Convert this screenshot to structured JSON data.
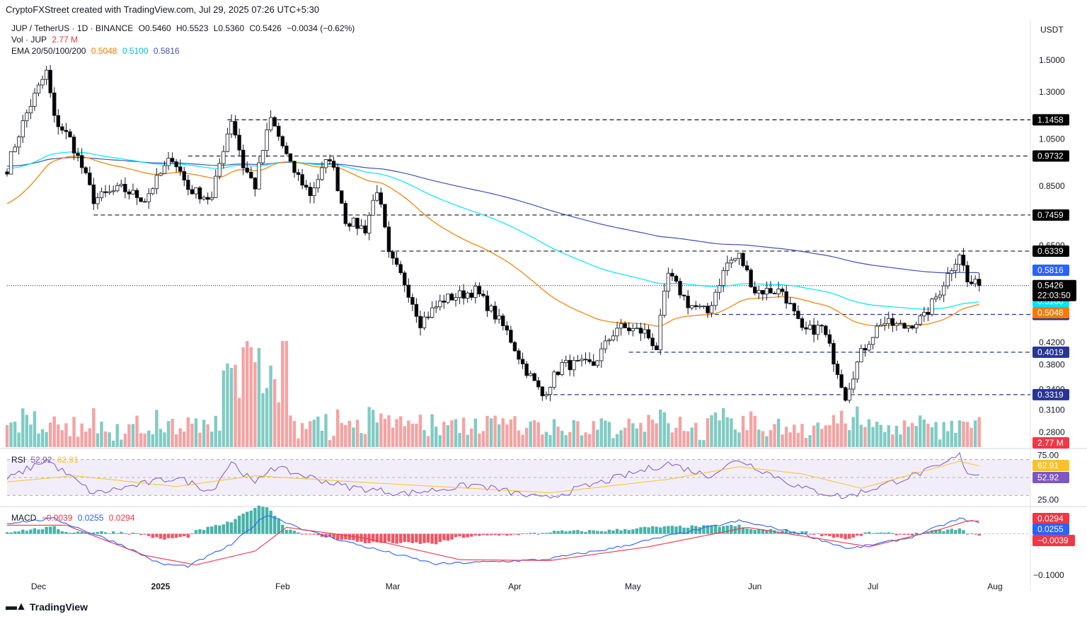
{
  "caption": "CryptoFXStreet created with TradingView.com, Jul 29, 2025 07:26 UTC+5:30",
  "currency": "USDT",
  "legend": {
    "symbol": "JUP / TetherUS · 1D · BINANCE",
    "open": "O0.5460",
    "high": "H0.5523",
    "low": "L0.5360",
    "close": "C0.5426",
    "change": "−0.0034 (−0.62%)",
    "vol_label": "Vol · JUP",
    "vol_value": "2.77 M",
    "ema_label": "EMA 20/50/100/200",
    "ema20": "0.5048",
    "ema50": "0.5100",
    "ema100": "0.5816"
  },
  "rsi_legend": {
    "label": "RSI",
    "value": "52.92",
    "ma": "62.91"
  },
  "macd_legend": {
    "label": "MACD",
    "hist": "−0.0039",
    "macd": "0.0255",
    "signal": "0.0294"
  },
  "footer": "TradingView",
  "colors": {
    "up": "#26a69a",
    "down": "#000000",
    "candle_up_fill": "#ffffff",
    "ema20": "#f57c00",
    "ema50": "#00e5ff",
    "ema200": "#3f51b5",
    "vol_up": "#80cbc4",
    "vol_down": "#f4a3a3",
    "rsi": "#7e57c2",
    "rsi_ma": "#fbc02d",
    "macd": "#2962ff",
    "signal": "#f23645"
  },
  "chart_data": [
    {
      "type": "candlestick",
      "title": "JUP / TetherUS · 1D · BINANCE",
      "yscale": "log",
      "ylim": [
        0.262,
        1.65
      ],
      "y_ticks": [
        "1.5000",
        "1.3000",
        "1.0500",
        "0.8500",
        "0.6500",
        "0.4200",
        "0.3800",
        "0.3400",
        "0.3100",
        "0.2800"
      ],
      "x_ticks": [
        "Dec",
        "2025",
        "Feb",
        "Mar",
        "Apr",
        "May",
        "Jun",
        "Jul",
        "Aug"
      ],
      "x_range": [
        "2024-11-23",
        "2025-08-10"
      ],
      "last_price": "0.5426",
      "countdown": "22:03:50",
      "levels": [
        {
          "value": 1.1458,
          "label": "1.1458",
          "start": "2025-01-18",
          "color": "black"
        },
        {
          "value": 0.9732,
          "label": "0.9732",
          "start": "2025-01-08",
          "color": "black"
        },
        {
          "value": 0.7459,
          "label": "0.7459",
          "start": "2024-12-15",
          "color": "black"
        },
        {
          "value": 0.6339,
          "label": "0.6339",
          "start": "2025-02-26",
          "color": "black"
        },
        {
          "value": 0.4764,
          "label": "0.4764",
          "start": "2025-05-20",
          "color": "navy"
        },
        {
          "value": 0.4019,
          "label": "0.4019",
          "start": "2025-04-30",
          "color": "navy"
        },
        {
          "value": 0.3319,
          "label": "0.3319",
          "start": "2025-04-09",
          "color": "navy"
        }
      ],
      "ema_tags": [
        {
          "name": "EMA 200",
          "value": "0.5816"
        },
        {
          "name": "EMA 50",
          "value": "0.5100"
        },
        {
          "name": "EMA 20",
          "value": "0.5048"
        }
      ],
      "close_anchors": [
        [
          "2024-11-23",
          0.92
        ],
        [
          "2024-11-28",
          1.18
        ],
        [
          "2024-12-03",
          1.42
        ],
        [
          "2024-12-05",
          1.15
        ],
        [
          "2024-12-09",
          1.05
        ],
        [
          "2024-12-15",
          0.8
        ],
        [
          "2024-12-22",
          0.84
        ],
        [
          "2024-12-28",
          0.8
        ],
        [
          "2025-01-04",
          0.97
        ],
        [
          "2025-01-08",
          0.84
        ],
        [
          "2025-01-14",
          0.8
        ],
        [
          "2025-01-19",
          1.15
        ],
        [
          "2025-01-22",
          0.93
        ],
        [
          "2025-01-25",
          0.85
        ],
        [
          "2025-01-29",
          1.15
        ],
        [
          "2025-02-03",
          0.93
        ],
        [
          "2025-02-08",
          0.82
        ],
        [
          "2025-02-13",
          0.97
        ],
        [
          "2025-02-17",
          0.73
        ],
        [
          "2025-02-22",
          0.7
        ],
        [
          "2025-02-25",
          0.84
        ],
        [
          "2025-02-28",
          0.62
        ],
        [
          "2025-03-04",
          0.55
        ],
        [
          "2025-03-08",
          0.46
        ],
        [
          "2025-03-14",
          0.51
        ],
        [
          "2025-03-22",
          0.53
        ],
        [
          "2025-03-30",
          0.44
        ],
        [
          "2025-04-03",
          0.38
        ],
        [
          "2025-04-08",
          0.33
        ],
        [
          "2025-04-13",
          0.38
        ],
        [
          "2025-04-21",
          0.38
        ],
        [
          "2025-04-27",
          0.45
        ],
        [
          "2025-05-04",
          0.44
        ],
        [
          "2025-05-07",
          0.41
        ],
        [
          "2025-05-10",
          0.57
        ],
        [
          "2025-05-15",
          0.5
        ],
        [
          "2025-05-20",
          0.48
        ],
        [
          "2025-05-25",
          0.6
        ],
        [
          "2025-05-28",
          0.62
        ],
        [
          "2025-06-01",
          0.53
        ],
        [
          "2025-06-08",
          0.53
        ],
        [
          "2025-06-13",
          0.44
        ],
        [
          "2025-06-18",
          0.45
        ],
        [
          "2025-06-22",
          0.37
        ],
        [
          "2025-06-24",
          0.33
        ],
        [
          "2025-06-28",
          0.4
        ],
        [
          "2025-07-03",
          0.46
        ],
        [
          "2025-07-09",
          0.45
        ],
        [
          "2025-07-14",
          0.47
        ],
        [
          "2025-07-18",
          0.53
        ],
        [
          "2025-07-23",
          0.63
        ],
        [
          "2025-07-25",
          0.55
        ],
        [
          "2025-07-28",
          0.5426
        ]
      ]
    },
    {
      "type": "bar",
      "title": "Vol · JUP",
      "last": "2.77 M"
    },
    {
      "type": "line",
      "title": "RSI",
      "ylim": [
        20,
        80
      ],
      "y_ticks": [
        "75.00",
        "25.00"
      ],
      "bands": [
        70,
        50,
        30
      ],
      "series": [
        {
          "name": "RSI",
          "last": "52.92",
          "anchors": [
            [
              "2024-11-23",
              48
            ],
            [
              "2024-12-03",
              70
            ],
            [
              "2024-12-15",
              32
            ],
            [
              "2025-01-05",
              50
            ],
            [
              "2025-01-14",
              35
            ],
            [
              "2025-01-19",
              68
            ],
            [
              "2025-01-25",
              42
            ],
            [
              "2025-01-29",
              62
            ],
            [
              "2025-02-17",
              40
            ],
            [
              "2025-03-04",
              32
            ],
            [
              "2025-03-22",
              42
            ],
            [
              "2025-04-08",
              26
            ],
            [
              "2025-05-10",
              66
            ],
            [
              "2025-05-20",
              52
            ],
            [
              "2025-05-28",
              70
            ],
            [
              "2025-06-13",
              38
            ],
            [
              "2025-06-24",
              28
            ],
            [
              "2025-07-18",
              62
            ],
            [
              "2025-07-23",
              75
            ],
            [
              "2025-07-25",
              56
            ],
            [
              "2025-07-28",
              52.92
            ]
          ]
        },
        {
          "name": "RSI MA",
          "last": "62.91",
          "anchors": [
            [
              "2024-11-23",
              45
            ],
            [
              "2024-12-10",
              52
            ],
            [
              "2025-01-05",
              40
            ],
            [
              "2025-01-25",
              52
            ],
            [
              "2025-02-20",
              45
            ],
            [
              "2025-04-10",
              33
            ],
            [
              "2025-05-10",
              48
            ],
            [
              "2025-05-28",
              62
            ],
            [
              "2025-06-13",
              54
            ],
            [
              "2025-06-28",
              38
            ],
            [
              "2025-07-23",
              68
            ],
            [
              "2025-07-28",
              62.91
            ]
          ]
        }
      ]
    },
    {
      "type": "line",
      "title": "MACD",
      "ylim": [
        -0.104,
        0.06
      ],
      "y_ticks": [
        "−0.1000"
      ],
      "series": [
        {
          "name": "Histogram",
          "last": "−0.0039"
        },
        {
          "name": "MACD",
          "last": "0.0255",
          "anchors": [
            [
              "2024-11-23",
              0.025
            ],
            [
              "2024-12-05",
              0.035
            ],
            [
              "2024-12-22",
              -0.025
            ],
            [
              "2025-01-01",
              -0.07
            ],
            [
              "2025-01-08",
              -0.075
            ],
            [
              "2025-01-19",
              -0.025
            ],
            [
              "2025-01-28",
              0.045
            ],
            [
              "2025-02-08",
              0.005
            ],
            [
              "2025-02-22",
              -0.03
            ],
            [
              "2025-03-12",
              -0.07
            ],
            [
              "2025-04-08",
              -0.06
            ],
            [
              "2025-04-25",
              -0.035
            ],
            [
              "2025-05-10",
              -0.005
            ],
            [
              "2025-05-28",
              0.03
            ],
            [
              "2025-06-13",
              0.0
            ],
            [
              "2025-06-25",
              -0.035
            ],
            [
              "2025-07-10",
              -0.01
            ],
            [
              "2025-07-23",
              0.035
            ],
            [
              "2025-07-28",
              0.0255
            ]
          ]
        },
        {
          "name": "Signal",
          "last": "0.0294",
          "anchors": [
            [
              "2024-11-23",
              0.02
            ],
            [
              "2024-12-08",
              0.02
            ],
            [
              "2024-12-28",
              -0.05
            ],
            [
              "2025-01-10",
              -0.072
            ],
            [
              "2025-01-25",
              -0.04
            ],
            [
              "2025-02-02",
              0.015
            ],
            [
              "2025-02-22",
              -0.01
            ],
            [
              "2025-03-18",
              -0.06
            ],
            [
              "2025-04-10",
              -0.062
            ],
            [
              "2025-05-05",
              -0.03
            ],
            [
              "2025-05-30",
              0.015
            ],
            [
              "2025-06-20",
              -0.015
            ],
            [
              "2025-06-30",
              -0.03
            ],
            [
              "2025-07-18",
              0.01
            ],
            [
              "2025-07-25",
              0.03
            ],
            [
              "2025-07-28",
              0.0294
            ]
          ]
        }
      ]
    }
  ]
}
